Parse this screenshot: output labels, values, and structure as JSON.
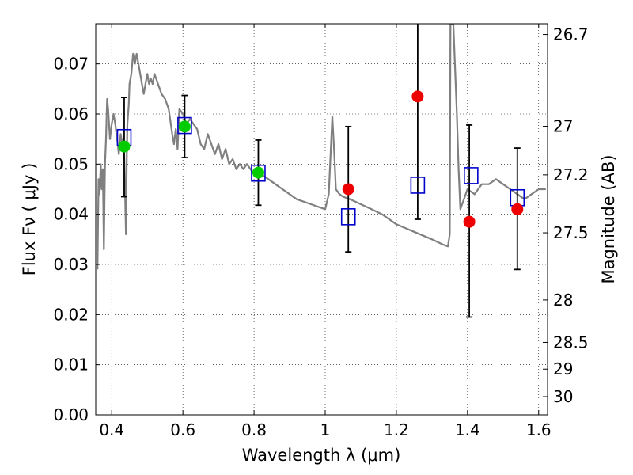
{
  "chart_data": {
    "type": "scatter",
    "xlabel": "Wavelength  λ (μm)",
    "ylabel": "Flux  Fν  ( μJy )",
    "y2label": "Magnitude (AB)",
    "xlim": [
      0.355,
      1.625
    ],
    "ylim": [
      0.0,
      0.078
    ],
    "grid": true,
    "x_ticks": [
      {
        "v": 0.4,
        "label": "0.4"
      },
      {
        "v": 0.6,
        "label": "0.6"
      },
      {
        "v": 0.8,
        "label": "0.8"
      },
      {
        "v": 1.0,
        "label": "1"
      },
      {
        "v": 1.2,
        "label": "1.2"
      },
      {
        "v": 1.4,
        "label": "1.4"
      },
      {
        "v": 1.6,
        "label": "1.6"
      }
    ],
    "y_ticks": [
      {
        "v": 0.0,
        "label": "0.00"
      },
      {
        "v": 0.01,
        "label": "0.01"
      },
      {
        "v": 0.02,
        "label": "0.02"
      },
      {
        "v": 0.03,
        "label": "0.03"
      },
      {
        "v": 0.04,
        "label": "0.04"
      },
      {
        "v": 0.05,
        "label": "0.05"
      },
      {
        "v": 0.06,
        "label": "0.06"
      },
      {
        "v": 0.07,
        "label": "0.07"
      }
    ],
    "y2_ticks": [
      {
        "mag": 26.7,
        "label": "26.7"
      },
      {
        "mag": 27.0,
        "label": "27"
      },
      {
        "mag": 27.2,
        "label": "27.2"
      },
      {
        "mag": 27.5,
        "label": "27.5"
      },
      {
        "mag": 28.0,
        "label": "28"
      },
      {
        "mag": 28.5,
        "label": "28.5"
      },
      {
        "mag": 29.0,
        "label": "29"
      },
      {
        "mag": 30.0,
        "label": "30"
      }
    ],
    "colors": {
      "sed": "#808080",
      "model": "#0000cc",
      "green": "#00cc00",
      "red": "#ee0000",
      "errbar": "#000000"
    },
    "series": [
      {
        "kind": "line",
        "x": [
          0.36,
          0.363,
          0.366,
          0.369,
          0.372,
          0.375,
          0.378,
          0.381,
          0.384,
          0.387,
          0.39,
          0.395,
          0.4,
          0.405,
          0.41,
          0.415,
          0.42,
          0.425,
          0.43,
          0.435,
          0.44,
          0.442,
          0.444,
          0.448,
          0.45,
          0.455,
          0.46,
          0.465,
          0.47,
          0.475,
          0.48,
          0.485,
          0.49,
          0.495,
          0.5,
          0.505,
          0.51,
          0.515,
          0.52,
          0.53,
          0.54,
          0.55,
          0.56,
          0.57,
          0.575,
          0.58,
          0.585,
          0.59,
          0.6,
          0.61,
          0.62,
          0.63,
          0.64,
          0.65,
          0.66,
          0.67,
          0.68,
          0.69,
          0.7,
          0.71,
          0.72,
          0.73,
          0.74,
          0.75,
          0.76,
          0.77,
          0.78,
          0.79,
          0.8,
          0.82,
          0.84,
          0.86,
          0.88,
          0.9,
          0.92,
          0.94,
          0.96,
          0.98,
          1.0,
          1.01,
          1.02,
          1.025,
          1.03,
          1.04,
          1.05,
          1.07,
          1.1,
          1.13,
          1.16,
          1.2,
          1.25,
          1.3,
          1.33,
          1.345,
          1.35,
          1.352,
          1.36,
          1.37,
          1.375,
          1.38,
          1.39,
          1.4,
          1.42,
          1.44,
          1.46,
          1.48,
          1.5,
          1.52,
          1.54,
          1.56,
          1.58,
          1.6,
          1.62
        ],
        "y": [
          0.029,
          0.047,
          0.044,
          0.05,
          0.045,
          0.049,
          0.033,
          0.05,
          0.055,
          0.063,
          0.061,
          0.055,
          0.058,
          0.06,
          0.058,
          0.055,
          0.052,
          0.056,
          0.054,
          0.052,
          0.036,
          0.05,
          0.058,
          0.062,
          0.066,
          0.068,
          0.072,
          0.07,
          0.072,
          0.07,
          0.068,
          0.066,
          0.064,
          0.066,
          0.068,
          0.066,
          0.067,
          0.066,
          0.068,
          0.066,
          0.064,
          0.063,
          0.061,
          0.056,
          0.054,
          0.057,
          0.053,
          0.061,
          0.06,
          0.058,
          0.059,
          0.058,
          0.057,
          0.054,
          0.053,
          0.056,
          0.054,
          0.052,
          0.054,
          0.051,
          0.053,
          0.05,
          0.051,
          0.049,
          0.05,
          0.049,
          0.05,
          0.049,
          0.048,
          0.048,
          0.047,
          0.046,
          0.045,
          0.044,
          0.043,
          0.0425,
          0.042,
          0.0415,
          0.041,
          0.044,
          0.0595,
          0.053,
          0.045,
          0.044,
          0.0435,
          0.043,
          0.042,
          0.041,
          0.04,
          0.038,
          0.0365,
          0.035,
          0.034,
          0.0336,
          0.036,
          0.078,
          0.078,
          0.06,
          0.049,
          0.041,
          0.043,
          0.045,
          0.044,
          0.046,
          0.046,
          0.047,
          0.046,
          0.045,
          0.044,
          0.043,
          0.044,
          0.045,
          0.045
        ]
      },
      {
        "kind": "errorbars",
        "x": [
          0.435,
          0.605,
          0.812,
          1.065,
          1.26,
          1.405,
          1.54
        ],
        "y": [
          0.0535,
          0.0575,
          0.0483,
          0.045,
          0.0635,
          0.0385,
          0.041
        ],
        "lo": [
          0.0435,
          0.0513,
          0.0418,
          0.0325,
          0.039,
          0.0195,
          0.029
        ],
        "hi": [
          0.0633,
          0.0637,
          0.0548,
          0.0575,
          0.078,
          0.0578,
          0.0532
        ]
      },
      {
        "kind": "squares",
        "x": [
          0.435,
          0.605,
          0.812,
          1.065,
          1.26,
          1.41,
          1.54
        ],
        "y": [
          0.0553,
          0.0577,
          0.0482,
          0.0395,
          0.0458,
          0.0477,
          0.0433
        ]
      },
      {
        "kind": "circles",
        "color_key": "green",
        "x": [
          0.435,
          0.605,
          0.812
        ],
        "y": [
          0.0535,
          0.0575,
          0.0483
        ]
      },
      {
        "kind": "circles",
        "color_key": "red",
        "x": [
          1.065,
          1.26,
          1.405,
          1.54
        ],
        "y": [
          0.045,
          0.0635,
          0.0385,
          0.041
        ]
      }
    ]
  }
}
